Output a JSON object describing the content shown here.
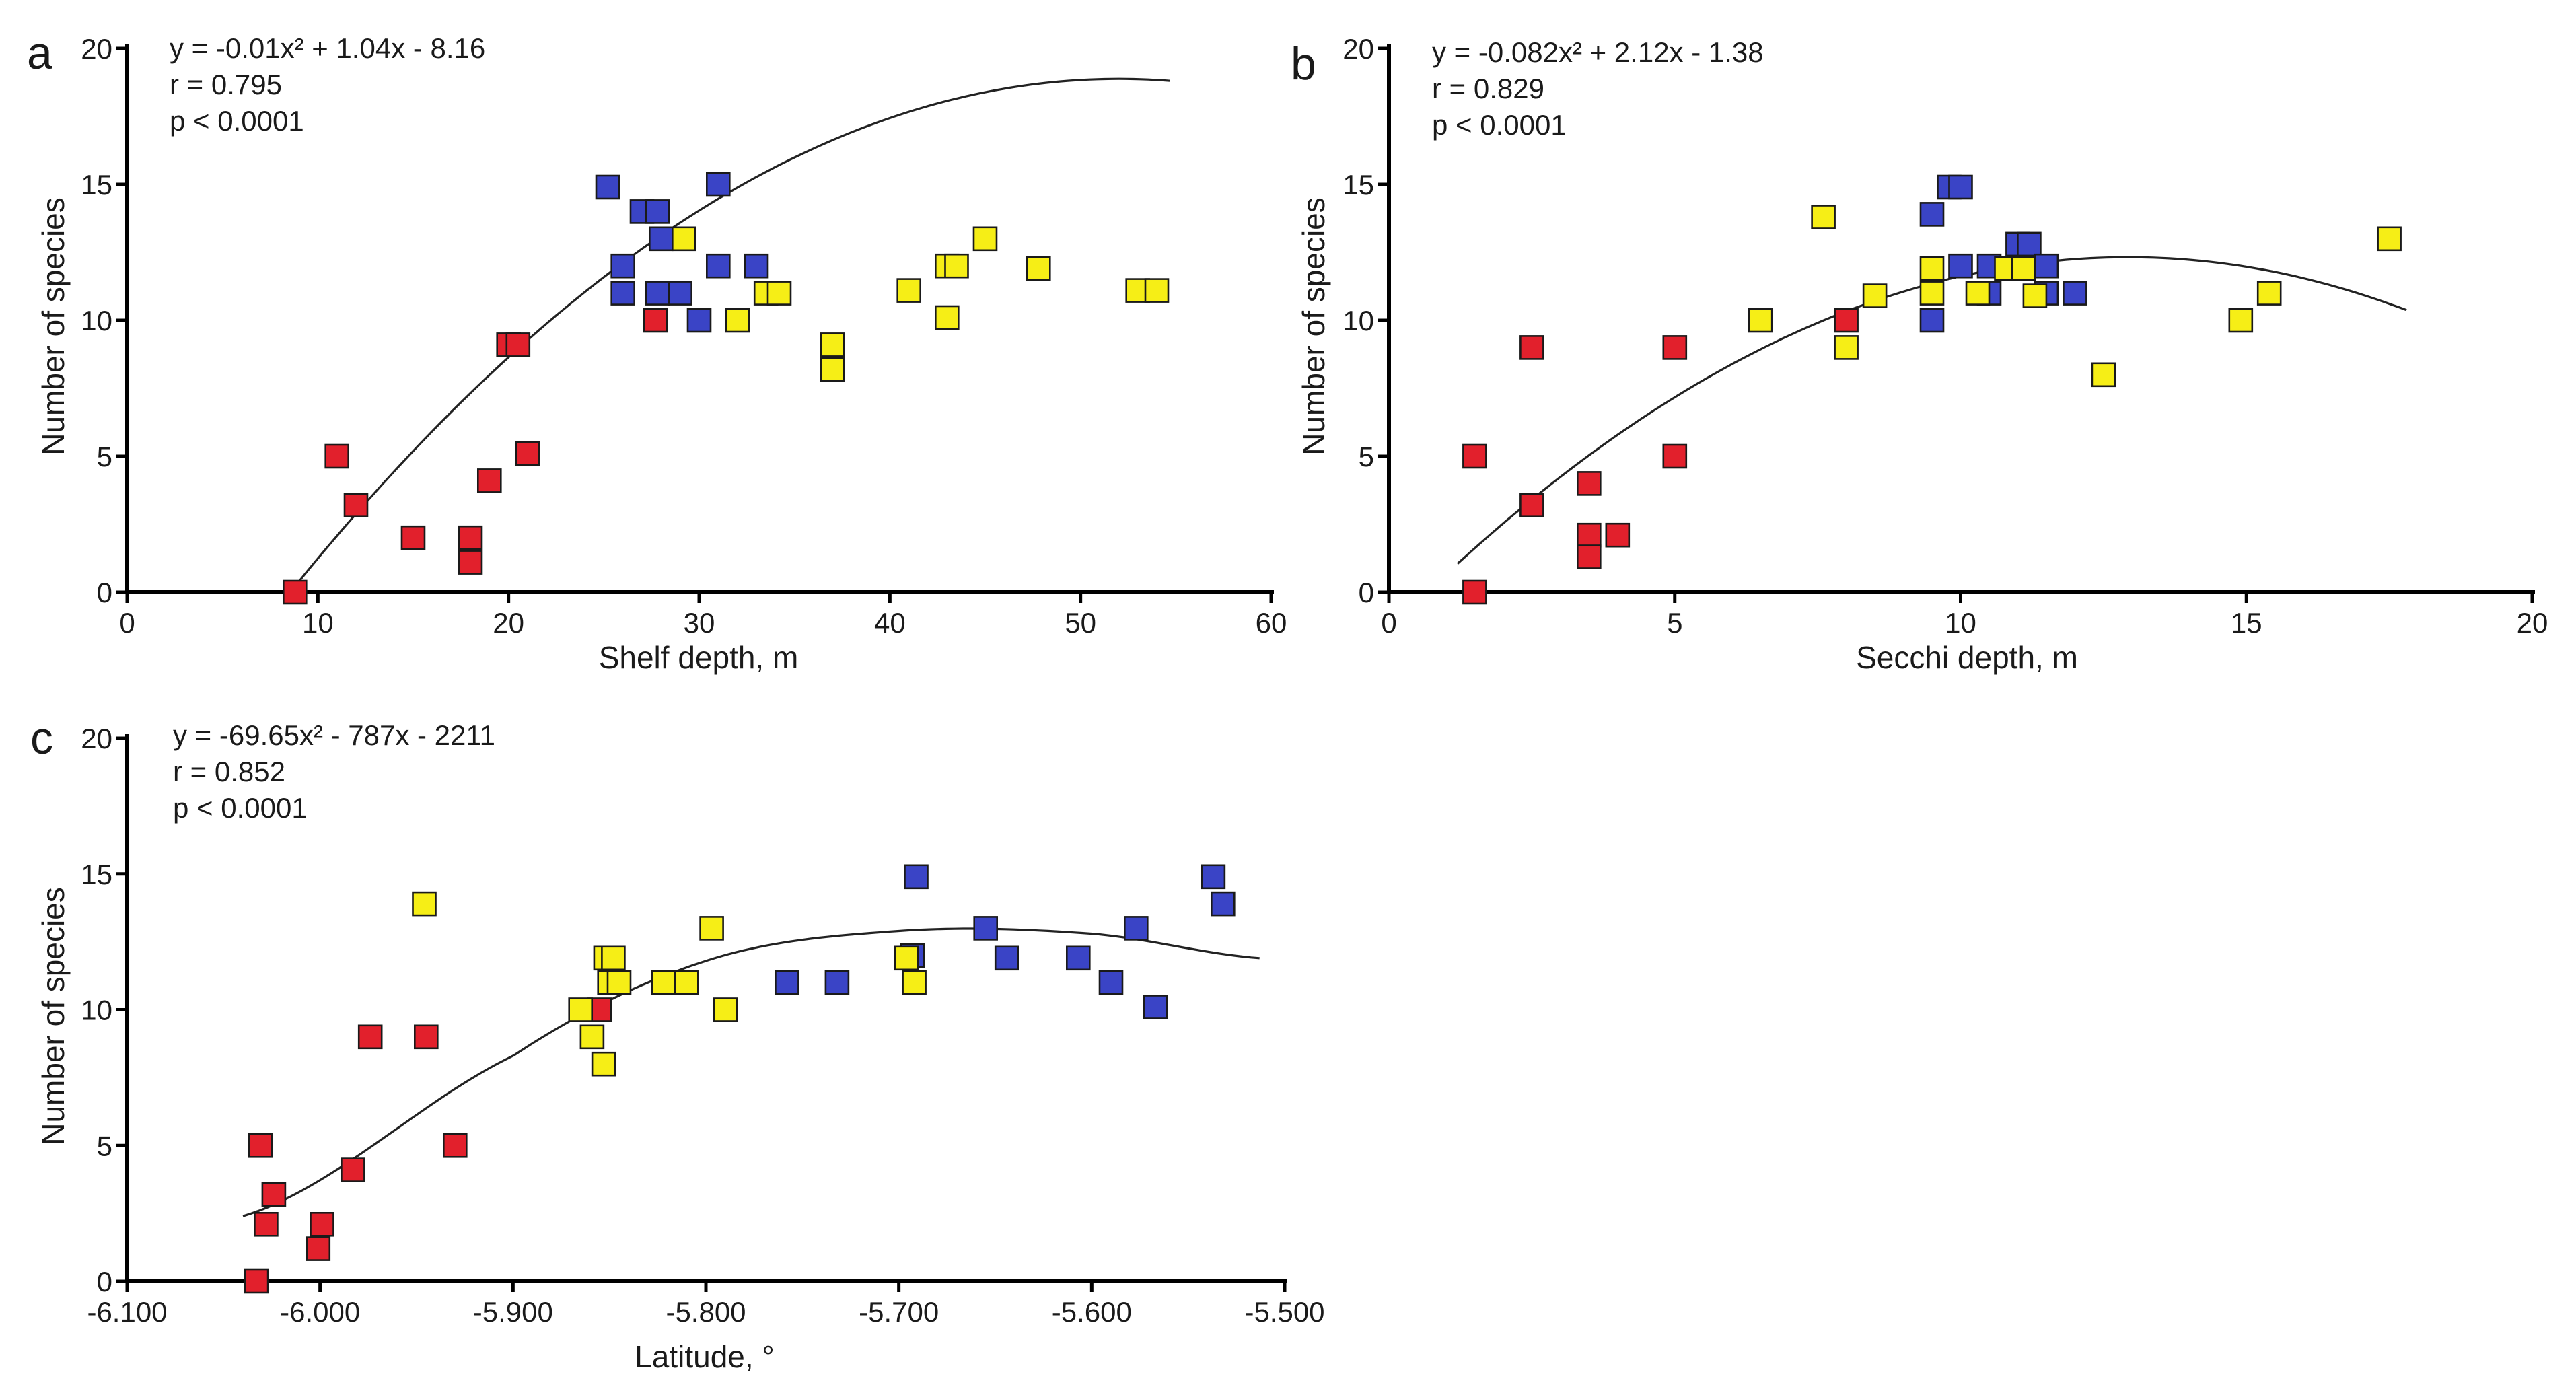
{
  "colors": {
    "red": "#e2202c",
    "blue": "#3a44c6",
    "yellow": "#f6ee16"
  },
  "chart_data": [
    {
      "type": "scatter",
      "panel": "a",
      "xlabel": "Shelf depth, m",
      "ylabel": "Number of species",
      "xlim": [
        0,
        60
      ],
      "ylim": [
        0,
        20
      ],
      "xticks": [
        0,
        10,
        20,
        30,
        40,
        50,
        60
      ],
      "yticks": [
        0,
        5,
        10,
        15,
        20
      ],
      "xtick_labels": [
        "0",
        "10",
        "20",
        "30",
        "40",
        "50",
        "60"
      ],
      "ytick_labels": [
        "0",
        "5",
        "10",
        "15",
        "20"
      ],
      "equation": "y = -0.01x² + 1.04x - 8.16",
      "r_text": "r = 0.795",
      "p_text": "p < 0.0001",
      "fit": {
        "a": -0.01,
        "b": 1.04,
        "c": -8.16,
        "x_range": [
          8.7,
          54.7
        ]
      },
      "series": [
        {
          "name": "red",
          "color": "red",
          "points": [
            [
              8.8,
              0
            ],
            [
              11,
              5
            ],
            [
              12,
              3.2
            ],
            [
              15,
              2
            ],
            [
              18,
              2
            ],
            [
              18,
              1.1
            ],
            [
              19,
              4.1
            ],
            [
              20,
              9.1
            ],
            [
              20.5,
              9.1
            ],
            [
              21,
              5.1
            ],
            [
              27.7,
              10
            ]
          ]
        },
        {
          "name": "blue",
          "color": "blue",
          "points": [
            [
              25.2,
              14.9
            ],
            [
              26,
              12
            ],
            [
              26,
              11
            ],
            [
              27,
              14
            ],
            [
              27.8,
              14
            ],
            [
              28,
              13
            ],
            [
              27.8,
              11
            ],
            [
              29,
              11
            ],
            [
              30,
              10
            ],
            [
              31,
              15
            ],
            [
              31,
              12
            ],
            [
              33,
              12
            ]
          ]
        },
        {
          "name": "yellow",
          "color": "yellow",
          "points": [
            [
              29.2,
              13
            ],
            [
              32,
              10
            ],
            [
              33.5,
              11
            ],
            [
              34.2,
              11
            ],
            [
              37,
              9.1
            ],
            [
              37,
              8.2
            ],
            [
              41,
              11.1
            ],
            [
              43,
              12
            ],
            [
              43,
              10.1
            ],
            [
              43.5,
              12
            ],
            [
              45,
              13
            ],
            [
              47.8,
              11.9
            ],
            [
              53,
              11.1
            ],
            [
              54,
              11.1
            ]
          ]
        }
      ]
    },
    {
      "type": "scatter",
      "panel": "b",
      "xlabel": "Secchi depth, m",
      "ylabel": "Number of species",
      "xlim": [
        0,
        20
      ],
      "ylim": [
        0,
        20
      ],
      "xticks": [
        0,
        5,
        10,
        15,
        20
      ],
      "yticks": [
        0,
        5,
        10,
        15,
        20
      ],
      "xtick_labels": [
        "0",
        "5",
        "10",
        "15",
        "20"
      ],
      "ytick_labels": [
        "0",
        "5",
        "10",
        "15",
        "20"
      ],
      "equation": "y = -0.082x² + 2.12x - 1.38",
      "r_text": "r = 0.829",
      "p_text": "p < 0.0001",
      "fit": {
        "a": -0.082,
        "b": 2.12,
        "c": -1.38,
        "x_range": [
          1.2,
          17.8
        ]
      },
      "series": [
        {
          "name": "red",
          "color": "red",
          "points": [
            [
              1.5,
              5
            ],
            [
              1.5,
              0
            ],
            [
              2.5,
              9
            ],
            [
              2.5,
              3.2
            ],
            [
              3.5,
              4
            ],
            [
              3.5,
              2.1
            ],
            [
              3.5,
              1.3
            ],
            [
              4,
              2.1
            ],
            [
              5,
              9
            ],
            [
              5,
              5
            ],
            [
              8,
              10
            ]
          ]
        },
        {
          "name": "blue",
          "color": "blue",
          "points": [
            [
              9.5,
              13.9
            ],
            [
              9.5,
              10
            ],
            [
              9.8,
              14.9
            ],
            [
              10,
              14.9
            ],
            [
              10,
              12
            ],
            [
              10.5,
              11
            ],
            [
              10.5,
              12
            ],
            [
              11,
              12.8
            ],
            [
              11.2,
              12.8
            ],
            [
              11.5,
              12
            ],
            [
              11.5,
              11
            ],
            [
              12,
              11
            ]
          ]
        },
        {
          "name": "yellow",
          "color": "yellow",
          "points": [
            [
              6.5,
              10
            ],
            [
              7.6,
              13.8
            ],
            [
              8,
              9
            ],
            [
              8.5,
              10.9
            ],
            [
              9.5,
              11.9
            ],
            [
              9.5,
              11
            ],
            [
              10.3,
              11
            ],
            [
              10.8,
              11.9
            ],
            [
              11.1,
              11.9
            ],
            [
              11.3,
              10.9
            ],
            [
              12.5,
              8
            ],
            [
              14.9,
              10
            ],
            [
              15.4,
              11
            ],
            [
              17.5,
              13
            ]
          ]
        }
      ]
    },
    {
      "type": "scatter",
      "panel": "c",
      "xlabel": "Latitude, °",
      "ylabel": "Number of species",
      "xlim": [
        -6.1,
        -5.5
      ],
      "ylim": [
        0,
        20
      ],
      "xticks": [
        -6.1,
        -6.0,
        -5.9,
        -5.8,
        -5.7,
        -5.6,
        -5.5
      ],
      "yticks": [
        0,
        5,
        10,
        15,
        20
      ],
      "xtick_labels": [
        "-6.100",
        "-6.000",
        "-5.900",
        "-5.800",
        "-5.700",
        "-5.600",
        "-5.500"
      ],
      "ytick_labels": [
        "0",
        "5",
        "10",
        "15",
        "20"
      ],
      "equation": "y = -69.65x² - 787x - 2211",
      "r_text": "r = 0.852",
      "p_text": "p < 0.0001",
      "fit": {
        "a": -69.65,
        "b": -787,
        "c": -2211,
        "x_range": [
          -6.04,
          -5.513
        ],
        "anchor": [
          [
            -6.04,
            2.4
          ],
          [
            -5.9,
            8.3
          ],
          [
            -5.8,
            11.8
          ],
          [
            -5.7,
            12.9
          ],
          [
            -5.6,
            12.8
          ],
          [
            -5.513,
            11.9
          ]
        ]
      },
      "series": [
        {
          "name": "red",
          "color": "red",
          "points": [
            [
              -6.031,
              5
            ],
            [
              -6.033,
              0
            ],
            [
              -6.028,
              2.1
            ],
            [
              -6.024,
              3.2
            ],
            [
              -6.001,
              1.2
            ],
            [
              -5.999,
              2.1
            ],
            [
              -5.983,
              4.1
            ],
            [
              -5.974,
              9
            ],
            [
              -5.945,
              9
            ],
            [
              -5.93,
              5
            ],
            [
              -5.855,
              10
            ]
          ]
        },
        {
          "name": "blue",
          "color": "blue",
          "points": [
            [
              -5.758,
              11
            ],
            [
              -5.732,
              11
            ],
            [
              -5.693,
              12
            ],
            [
              -5.691,
              14.9
            ],
            [
              -5.655,
              13
            ],
            [
              -5.644,
              11.9
            ],
            [
              -5.607,
              11.9
            ],
            [
              -5.59,
              11
            ],
            [
              -5.577,
              13
            ],
            [
              -5.567,
              10.1
            ],
            [
              -5.537,
              14.9
            ],
            [
              -5.532,
              13.9
            ]
          ]
        },
        {
          "name": "yellow",
          "color": "yellow",
          "points": [
            [
              -5.946,
              13.9
            ],
            [
              -5.865,
              10
            ],
            [
              -5.859,
              9
            ],
            [
              -5.853,
              8
            ],
            [
              -5.852,
              11.9
            ],
            [
              -5.85,
              11
            ],
            [
              -5.848,
              11.9
            ],
            [
              -5.845,
              11
            ],
            [
              -5.822,
              11
            ],
            [
              -5.81,
              11
            ],
            [
              -5.797,
              13
            ],
            [
              -5.79,
              10
            ],
            [
              -5.696,
              11.9
            ],
            [
              -5.692,
              11
            ]
          ]
        }
      ]
    }
  ]
}
